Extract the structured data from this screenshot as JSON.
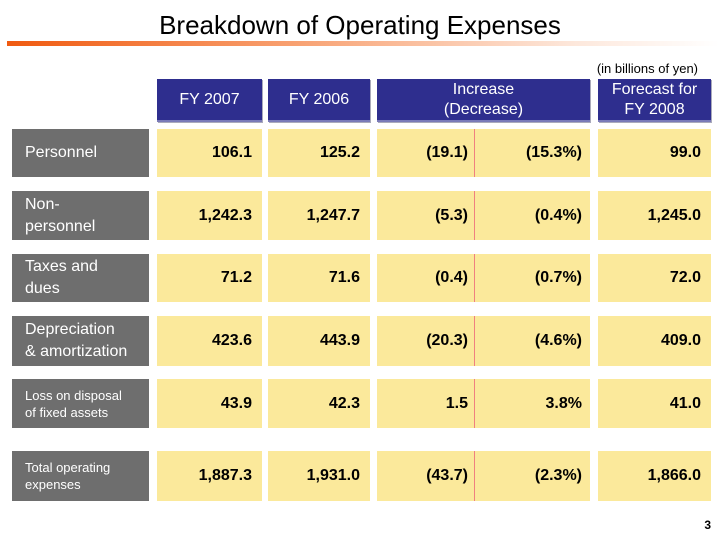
{
  "title": "Breakdown of Operating Expenses",
  "unit_note": "(in billions of yen)",
  "headers": {
    "fy2007": "FY 2007",
    "fy2006": "FY 2006",
    "increase_line1": "Increase",
    "increase_line2": "(Decrease)",
    "forecast_line1": "Forecast for",
    "forecast_line2": "FY 2008"
  },
  "rows": [
    {
      "label": "Personnel",
      "fy2007": "106.1",
      "fy2006": "125.2",
      "inc": "(19.1)",
      "pct": "(15.3%)",
      "forecast": "99.0"
    },
    {
      "label": "Non-\npersonnel",
      "fy2007": "1,242.3",
      "fy2006": "1,247.7",
      "inc": "(5.3)",
      "pct": "(0.4%)",
      "forecast": "1,245.0"
    },
    {
      "label": "Taxes and\ndues",
      "fy2007": "71.2",
      "fy2006": "71.6",
      "inc": "(0.4)",
      "pct": "(0.7%)",
      "forecast": "72.0"
    },
    {
      "label": "Depreciation\n& amortization",
      "fy2007": "423.6",
      "fy2006": "443.9",
      "inc": "(20.3)",
      "pct": "(4.6%)",
      "forecast": "409.0"
    },
    {
      "label": "Loss on disposal\nof fixed assets",
      "fy2007": "43.9",
      "fy2006": "42.3",
      "inc": "1.5",
      "pct": "3.8%",
      "forecast": "41.0"
    },
    {
      "label": "Total operating\nexpenses",
      "fy2007": "1,887.3",
      "fy2006": "1,931.0",
      "inc": "(43.7)",
      "pct": "(2.3%)",
      "forecast": "1,866.0"
    }
  ],
  "page_number": "3",
  "colors": {
    "header_bg": "#2e2e8e",
    "label_bg": "#6e6e6e",
    "cell_bg": "#fbe99b",
    "accent_rule": "#f05a10"
  }
}
